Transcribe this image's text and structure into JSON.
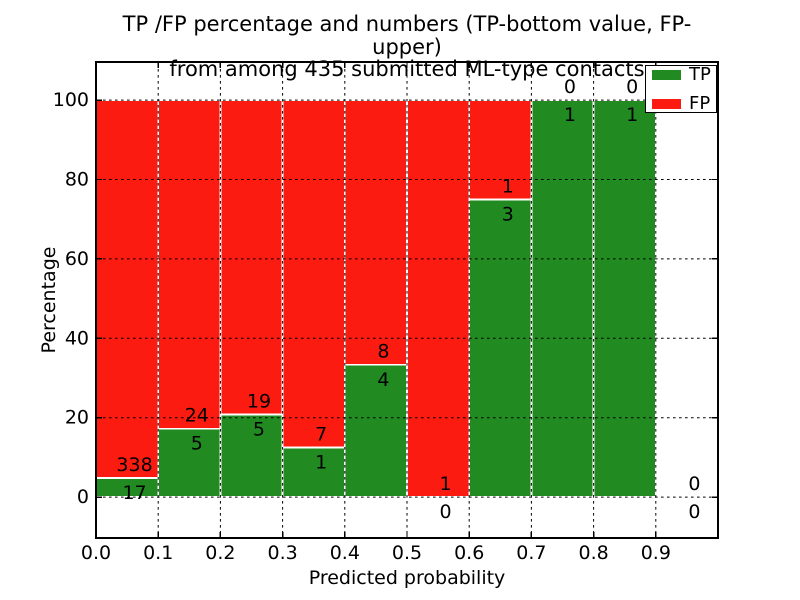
{
  "chart_data": {
    "type": "bar",
    "stacked": true,
    "title_line1": "TP /FP percentage and numbers (TP-bottom value, FP-upper)",
    "title_line2": "from among 435 submitted ML-type contacts",
    "xlabel": "Predicted probability",
    "ylabel": "Percentage",
    "total_submitted_contacts": 435,
    "xlim": [
      0.0,
      1.0
    ],
    "ylim": [
      -10.3,
      109.6
    ],
    "bin_width": 0.1,
    "xticks": [
      {
        "value": 0.0,
        "label": "0.0"
      },
      {
        "value": 0.1,
        "label": "0.1"
      },
      {
        "value": 0.2,
        "label": "0.2"
      },
      {
        "value": 0.3,
        "label": "0.3"
      },
      {
        "value": 0.4,
        "label": "0.4"
      },
      {
        "value": 0.5,
        "label": "0.5"
      },
      {
        "value": 0.6,
        "label": "0.6"
      },
      {
        "value": 0.7,
        "label": "0.7"
      },
      {
        "value": 0.8,
        "label": "0.8"
      },
      {
        "value": 0.9,
        "label": "0.9"
      }
    ],
    "yticks": [
      {
        "value": 0,
        "label": "0"
      },
      {
        "value": 20,
        "label": "20"
      },
      {
        "value": 40,
        "label": "40"
      },
      {
        "value": 60,
        "label": "60"
      },
      {
        "value": 80,
        "label": "80"
      },
      {
        "value": 100,
        "label": "100"
      }
    ],
    "grid": {
      "show": true,
      "color": "#000000",
      "linestyle": "dotted"
    },
    "colors": {
      "tp": "#218b21",
      "fp": "#fb1b11",
      "bar_edge": "#ffffff",
      "axes": "#000000",
      "text": "#000000",
      "background": "#ffffff"
    },
    "legend": {
      "position": "upper-right",
      "entries": [
        {
          "label": "TP",
          "color": "#218b21"
        },
        {
          "label": "FP",
          "color": "#fb1b11"
        }
      ]
    },
    "bins": [
      {
        "x_left": 0.0,
        "x_right": 0.1,
        "tp": 17,
        "fp": 338,
        "tp_pct": 4.8
      },
      {
        "x_left": 0.1,
        "x_right": 0.2,
        "tp": 5,
        "fp": 24,
        "tp_pct": 17.2
      },
      {
        "x_left": 0.2,
        "x_right": 0.3,
        "tp": 5,
        "fp": 19,
        "tp_pct": 20.8
      },
      {
        "x_left": 0.3,
        "x_right": 0.4,
        "tp": 1,
        "fp": 7,
        "tp_pct": 12.5
      },
      {
        "x_left": 0.4,
        "x_right": 0.5,
        "tp": 4,
        "fp": 8,
        "tp_pct": 33.3
      },
      {
        "x_left": 0.5,
        "x_right": 0.6,
        "tp": 0,
        "fp": 1,
        "tp_pct": 0.0
      },
      {
        "x_left": 0.6,
        "x_right": 0.7,
        "tp": 3,
        "fp": 1,
        "tp_pct": 75.0
      },
      {
        "x_left": 0.7,
        "x_right": 0.8,
        "tp": 1,
        "fp": 0,
        "tp_pct": 100.0
      },
      {
        "x_left": 0.8,
        "x_right": 0.9,
        "tp": 1,
        "fp": 0,
        "tp_pct": 100.0
      },
      {
        "x_left": 0.9,
        "x_right": 1.0,
        "tp": 0,
        "fp": 0,
        "tp_pct": 0.0
      }
    ]
  }
}
